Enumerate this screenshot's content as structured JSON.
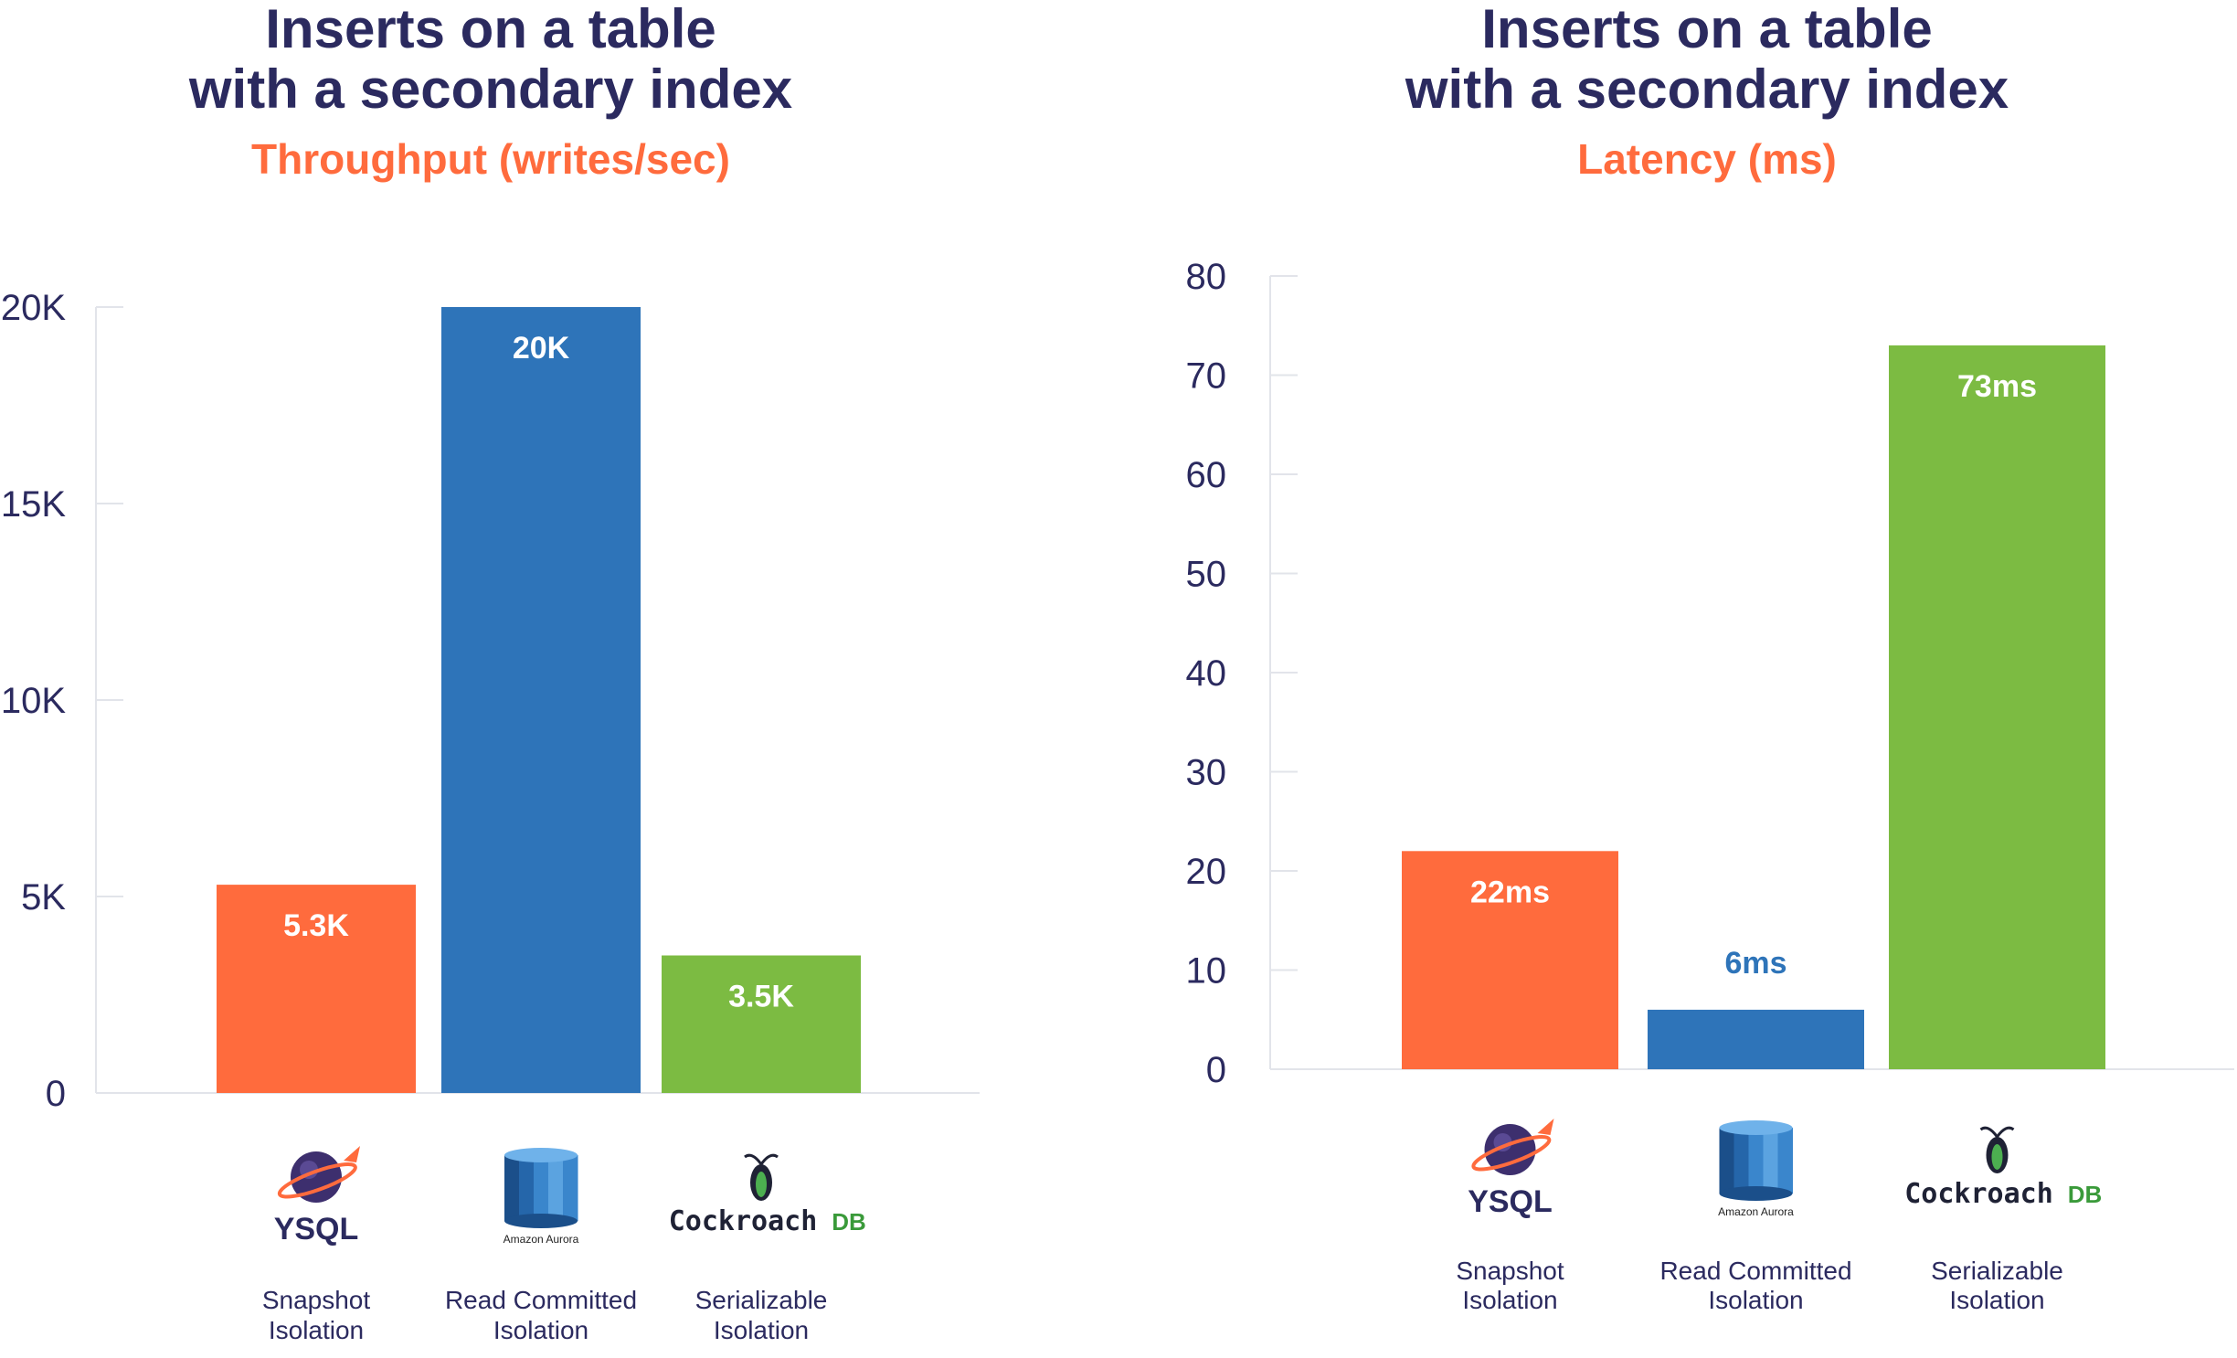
{
  "colors": {
    "ysql": "#ff6b3d",
    "aurora": "#2e74b9",
    "cockroach": "#7cbb42",
    "title": "#2b2a5f",
    "subtitle": "#ff6b3d",
    "axis": "#e2e4ea"
  },
  "logos": {
    "ysql": {
      "icon": "planet-rocket-icon",
      "text": "YSQL"
    },
    "aurora": {
      "icon": "database-cylinder-icon",
      "text": "Amazon Aurora"
    },
    "cockroach": {
      "icon": "cockroach-icon",
      "text": "Cockroach",
      "suffix": "DB"
    }
  },
  "chart_data": [
    {
      "type": "bar",
      "title_line1": "Inserts on a table",
      "title_line2": "with a secondary index",
      "subtitle": "Throughput (writes/sec)",
      "categories": [
        "YSQL",
        "Amazon Aurora",
        "CockroachDB"
      ],
      "isolation": [
        [
          "Snapshot",
          "Isolation"
        ],
        [
          "Read Committed",
          "Isolation"
        ],
        [
          "Serializable",
          "Isolation"
        ]
      ],
      "values": [
        5300,
        20000,
        3500
      ],
      "data_labels": [
        "5.3K",
        "20K",
        "3.5K"
      ],
      "ylim": [
        0,
        20000
      ],
      "yticks": [
        0,
        5000,
        10000,
        15000,
        20000
      ],
      "ytick_labels": [
        "0",
        "5K",
        "10K",
        "15K",
        "20K"
      ],
      "grid": false
    },
    {
      "type": "bar",
      "title_line1": "Inserts on a table",
      "title_line2": "with a secondary index",
      "subtitle": "Latency (ms)",
      "categories": [
        "YSQL",
        "Amazon Aurora",
        "CockroachDB"
      ],
      "isolation": [
        [
          "Snapshot",
          "Isolation"
        ],
        [
          "Read Committed",
          "Isolation"
        ],
        [
          "Serializable",
          "Isolation"
        ]
      ],
      "values": [
        22,
        6,
        73
      ],
      "data_labels": [
        "22ms",
        "6ms",
        "73ms"
      ],
      "ylim": [
        0,
        80
      ],
      "yticks": [
        0,
        10,
        20,
        30,
        40,
        50,
        60,
        70,
        80
      ],
      "ytick_labels": [
        "0",
        "10",
        "20",
        "30",
        "40",
        "50",
        "60",
        "70",
        "80"
      ],
      "grid": false
    }
  ]
}
